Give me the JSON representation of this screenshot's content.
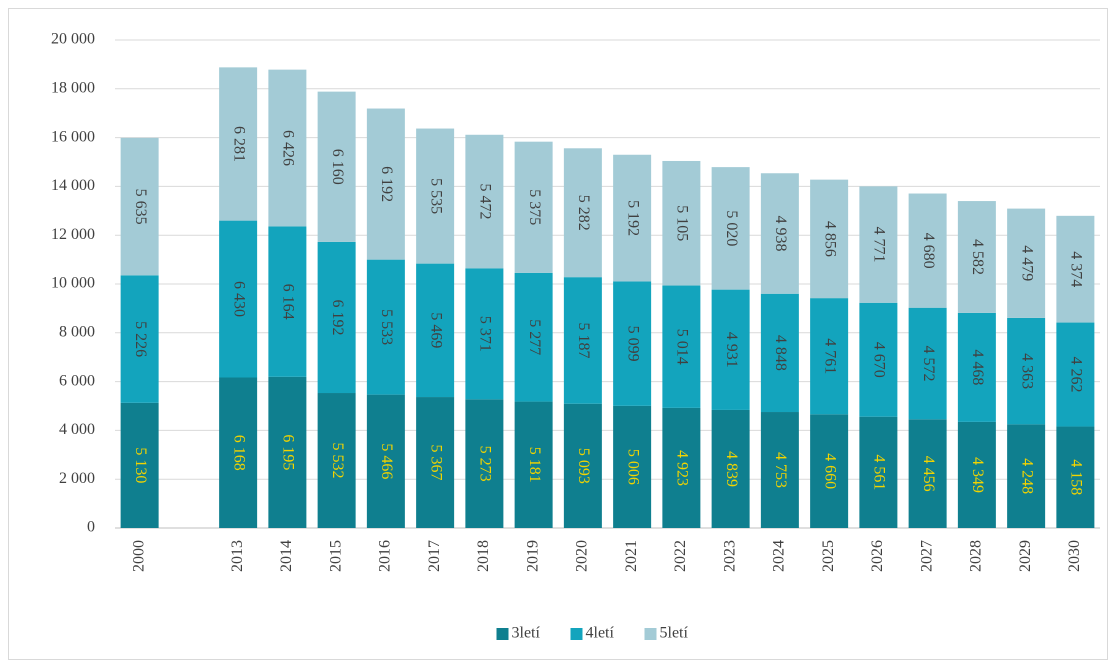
{
  "chart_data": {
    "type": "stacked_bar",
    "categories": [
      "2000",
      null,
      "2013",
      "2014",
      "2015",
      "2016",
      "2017",
      "2018",
      "2019",
      "2020",
      "2021",
      "2022",
      "2023",
      "2024",
      "2025",
      "2026",
      "2027",
      "2028",
      "2029",
      "2030"
    ],
    "series": [
      {
        "name": "3letí",
        "color": "#0f7f8f",
        "label_color": "#f2d400",
        "values": [
          5130,
          null,
          6168,
          6195,
          5532,
          5466,
          5367,
          5273,
          5181,
          5093,
          5006,
          4923,
          4839,
          4753,
          4660,
          4561,
          4456,
          4349,
          4248,
          4158
        ],
        "value_labels": [
          "5 130",
          null,
          "6 168",
          "6 195",
          "5 532",
          "5 466",
          "5 367",
          "5 273",
          "5 181",
          "5 093",
          "5 006",
          "4 923",
          "4 839",
          "4 753",
          "4 660",
          "4 561",
          "4 456",
          "4 349",
          "4 248",
          "4 158"
        ]
      },
      {
        "name": "4letí",
        "color": "#13a4bd",
        "label_color": "#404040",
        "values": [
          5226,
          null,
          6430,
          6164,
          6192,
          5533,
          5469,
          5371,
          5277,
          5187,
          5099,
          5014,
          4931,
          4848,
          4761,
          4670,
          4572,
          4468,
          4363,
          4262
        ],
        "value_labels": [
          "5 226",
          null,
          "6 430",
          "6 164",
          "6 192",
          "5 533",
          "5 469",
          "5 371",
          "5 277",
          "5 187",
          "5 099",
          "5 014",
          "4 931",
          "4 848",
          "4 761",
          "4 670",
          "4 572",
          "4 468",
          "4 363",
          "4 262"
        ]
      },
      {
        "name": "5letí",
        "color": "#a3cbd6",
        "label_color": "#404040",
        "values": [
          5635,
          null,
          6281,
          6426,
          6160,
          6192,
          5535,
          5472,
          5375,
          5282,
          5192,
          5105,
          5020,
          4938,
          4856,
          4771,
          4680,
          4582,
          4479,
          4374
        ],
        "value_labels": [
          "5 635",
          null,
          "6 281",
          "6 426",
          "6 160",
          "6 192",
          "5 535",
          "5 472",
          "5 375",
          "5 282",
          "5 192",
          "5 105",
          "5 020",
          "4 938",
          "4 856",
          "4 771",
          "4 680",
          "4 582",
          "4 479",
          "4 374"
        ]
      }
    ],
    "ylim": [
      0,
      20000
    ],
    "yticks": [
      0,
      {
        "value": 2000,
        "label": "2 000"
      },
      {
        "value": 4000,
        "label": "4 000"
      },
      {
        "value": 6000,
        "label": "6 000"
      },
      {
        "value": 8000,
        "label": "8 000"
      },
      {
        "value": 10000,
        "label": "10 000"
      },
      {
        "value": 12000,
        "label": "12 000"
      },
      {
        "value": 14000,
        "label": "14 000"
      },
      {
        "value": 16000,
        "label": "16 000"
      },
      {
        "value": 18000,
        "label": "18 000"
      },
      {
        "value": 20000,
        "label": "20 000"
      }
    ],
    "grid": true,
    "legend": "bottom"
  }
}
